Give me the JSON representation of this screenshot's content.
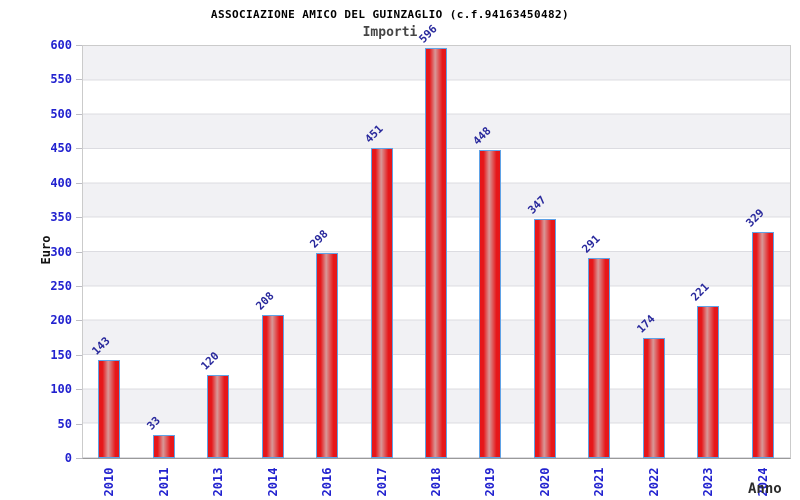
{
  "chart_data": {
    "type": "bar",
    "title": "ASSOCIAZIONE AMICO DEL GUINZAGLIO (c.f.94163450482)",
    "subtitle": "Importi",
    "xlabel": "Anno",
    "ylabel": "Euro",
    "categories": [
      "2010",
      "2011",
      "2013",
      "2014",
      "2016",
      "2017",
      "2018",
      "2019",
      "2020",
      "2021",
      "2022",
      "2023",
      "2024"
    ],
    "values": [
      143,
      33,
      120,
      208,
      298,
      451,
      596,
      448,
      347,
      291,
      174,
      221,
      329
    ],
    "ylim": [
      0,
      600
    ],
    "ytick_step": 50,
    "grid": "alternating horizontal bands every 50 units",
    "legend": "none",
    "colors": {
      "bar_fill": "#e6171a",
      "bar_highlight": "#d89898",
      "bar_border": "#5fa2e6",
      "axis_tick_text": "#2222cf",
      "value_label_text": "#28289c",
      "band_gray": "#f1f1f4",
      "gridline": "#dcdce1",
      "subtitle_text": "#454545",
      "title_text": "#000000"
    }
  }
}
